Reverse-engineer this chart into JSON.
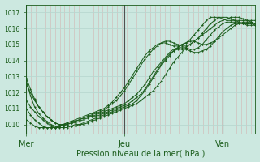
{
  "title": "Pression niveau de la mer( hPa )",
  "bg_color": "#cce8e0",
  "grid_color_h": "#b8d8d0",
  "grid_color_v": "#e8b8b8",
  "line_color": "#1a5c1a",
  "vline_color": "#505050",
  "ylim": [
    1009.4,
    1017.5
  ],
  "yticks": [
    1010,
    1011,
    1012,
    1013,
    1014,
    1015,
    1016,
    1017
  ],
  "xtick_labels": [
    "Mer",
    "Jeu",
    "Ven"
  ],
  "xtick_positions": [
    0.0,
    0.428,
    0.857
  ],
  "vline_positions": [
    0.0,
    0.428,
    0.857
  ],
  "series": [
    [
      1012.5,
      1012.0,
      1011.5,
      1011.1,
      1010.8,
      1010.5,
      1010.3,
      1010.1,
      1010.0,
      1009.9,
      1009.9,
      1009.9,
      1009.9,
      1010.0,
      1010.0,
      1010.1,
      1010.2,
      1010.3,
      1010.4,
      1010.5,
      1010.6,
      1010.7,
      1010.8,
      1010.9,
      1011.0,
      1011.1,
      1011.2,
      1011.3,
      1011.5,
      1011.7,
      1011.9,
      1012.1,
      1012.4,
      1012.7,
      1013.1,
      1013.5,
      1013.9,
      1014.2,
      1014.5,
      1014.8,
      1015.0,
      1015.2,
      1015.4,
      1015.6,
      1015.8,
      1016.0,
      1016.2,
      1016.4,
      1016.5,
      1016.6,
      1016.7,
      1016.7,
      1016.7,
      1016.6,
      1016.5,
      1016.4,
      1016.3
    ],
    [
      1011.5,
      1011.1,
      1010.8,
      1010.5,
      1010.3,
      1010.1,
      1009.9,
      1009.8,
      1009.8,
      1009.8,
      1009.8,
      1009.9,
      1010.0,
      1010.0,
      1010.1,
      1010.2,
      1010.3,
      1010.4,
      1010.5,
      1010.6,
      1010.7,
      1010.8,
      1010.9,
      1011.0,
      1011.1,
      1011.2,
      1011.3,
      1011.5,
      1011.8,
      1012.1,
      1012.5,
      1012.9,
      1013.3,
      1013.7,
      1014.0,
      1014.3,
      1014.6,
      1014.8,
      1015.0,
      1015.1,
      1015.2,
      1015.2,
      1015.1,
      1015.0,
      1015.0,
      1015.1,
      1015.2,
      1015.4,
      1015.6,
      1015.8,
      1016.0,
      1016.2,
      1016.3,
      1016.4,
      1016.4,
      1016.4,
      1016.3
    ],
    [
      1010.3,
      1010.1,
      1009.9,
      1009.8,
      1009.8,
      1009.8,
      1009.8,
      1009.8,
      1009.9,
      1010.0,
      1010.0,
      1010.1,
      1010.1,
      1010.2,
      1010.3,
      1010.4,
      1010.5,
      1010.5,
      1010.6,
      1010.7,
      1010.8,
      1010.9,
      1011.0,
      1011.1,
      1011.2,
      1011.3,
      1011.5,
      1011.7,
      1011.9,
      1012.2,
      1012.6,
      1013.0,
      1013.4,
      1013.8,
      1014.1,
      1014.4,
      1014.6,
      1014.7,
      1014.7,
      1014.7,
      1014.6,
      1014.5,
      1014.5,
      1014.6,
      1014.7,
      1014.9,
      1015.2,
      1015.5,
      1015.8,
      1016.0,
      1016.2,
      1016.3,
      1016.3,
      1016.3,
      1016.2,
      1016.2,
      1016.2
    ],
    [
      1012.7,
      1011.8,
      1011.1,
      1010.7,
      1010.4,
      1010.2,
      1010.0,
      1009.9,
      1009.9,
      1009.9,
      1010.0,
      1010.1,
      1010.2,
      1010.3,
      1010.4,
      1010.5,
      1010.6,
      1010.7,
      1010.8,
      1010.9,
      1011.1,
      1011.3,
      1011.5,
      1011.8,
      1012.1,
      1012.5,
      1012.9,
      1013.3,
      1013.7,
      1014.1,
      1014.4,
      1014.7,
      1014.9,
      1015.1,
      1015.2,
      1015.2,
      1015.1,
      1015.0,
      1014.9,
      1014.9,
      1015.0,
      1015.2,
      1015.4,
      1015.7,
      1016.0,
      1016.3,
      1016.5,
      1016.7,
      1016.7,
      1016.7,
      1016.6,
      1016.5,
      1016.4,
      1016.3,
      1016.3,
      1016.3,
      1016.3
    ],
    [
      1012.9,
      1012.2,
      1011.6,
      1011.1,
      1010.8,
      1010.5,
      1010.3,
      1010.1,
      1010.0,
      1010.0,
      1010.1,
      1010.2,
      1010.3,
      1010.4,
      1010.5,
      1010.6,
      1010.7,
      1010.8,
      1010.9,
      1011.0,
      1011.2,
      1011.4,
      1011.7,
      1012.0,
      1012.3,
      1012.7,
      1013.1,
      1013.5,
      1013.9,
      1014.3,
      1014.6,
      1014.8,
      1015.0,
      1015.1,
      1015.1,
      1015.0,
      1014.9,
      1014.9,
      1015.0,
      1015.1,
      1015.3,
      1015.6,
      1015.9,
      1016.2,
      1016.5,
      1016.7,
      1016.7,
      1016.7,
      1016.6,
      1016.5,
      1016.5,
      1016.5,
      1016.5,
      1016.5,
      1016.5,
      1016.5,
      1016.5
    ],
    [
      1011.0,
      1010.6,
      1010.3,
      1010.1,
      1009.9,
      1009.8,
      1009.8,
      1009.8,
      1009.9,
      1010.0,
      1010.1,
      1010.2,
      1010.2,
      1010.3,
      1010.4,
      1010.5,
      1010.5,
      1010.6,
      1010.7,
      1010.8,
      1010.9,
      1011.0,
      1011.1,
      1011.2,
      1011.3,
      1011.5,
      1011.7,
      1011.9,
      1012.2,
      1012.5,
      1012.9,
      1013.3,
      1013.6,
      1013.9,
      1014.2,
      1014.5,
      1014.7,
      1014.8,
      1014.8,
      1014.8,
      1014.7,
      1014.7,
      1014.8,
      1015.0,
      1015.3,
      1015.6,
      1015.9,
      1016.1,
      1016.3,
      1016.4,
      1016.4,
      1016.4,
      1016.4,
      1016.3,
      1016.3,
      1016.3,
      1016.2
    ]
  ]
}
